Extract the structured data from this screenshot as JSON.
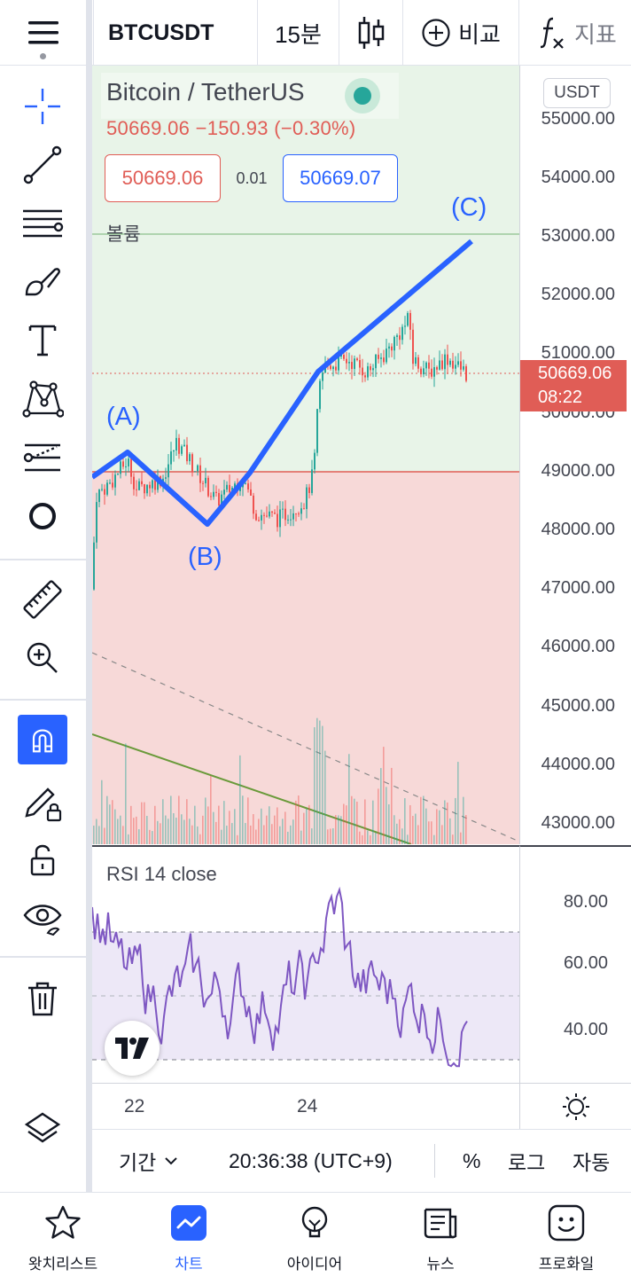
{
  "header": {
    "symbol": "BTCUSDT",
    "interval": "15분",
    "compare_label": "비교",
    "indicators_label": "지표"
  },
  "legend": {
    "title": "Bitcoin / TetherUS",
    "change": "50669.06  −150.93 (−0.30%)",
    "bid": "50669.06",
    "spread": "0.01",
    "ask": "50669.07",
    "volume_label": "볼륨"
  },
  "price_axis": {
    "currency": "USDT",
    "labels": [
      "55000.00",
      "54000.00",
      "53000.00",
      "52000.00",
      "51000.00",
      "50000.00",
      "49000.00",
      "48000.00",
      "47000.00",
      "46000.00",
      "45000.00",
      "44000.00",
      "43000.00"
    ],
    "current_price": "50669.06",
    "countdown": "08:22",
    "current_color": "#e05d56"
  },
  "annotations": {
    "a": "(A)",
    "b": "(B)",
    "c": "(C)",
    "line_color": "#2962ff"
  },
  "rsi": {
    "label": "RSI 14 close",
    "axis_labels": [
      "80.00",
      "60.00",
      "40.00"
    ],
    "line_color": "#7e57c2"
  },
  "time_axis": {
    "labels": [
      "22",
      "24"
    ]
  },
  "range_bar": {
    "period": "기간",
    "time": "20:36:38 (UTC+9)",
    "percent": "%",
    "log": "로그",
    "auto": "자동"
  },
  "nav": {
    "watchlist": "왓치리스트",
    "chart": "차트",
    "ideas": "아이디어",
    "news": "뉴스",
    "profile": "프로화일"
  },
  "colors": {
    "accent": "#2962ff",
    "up_zone": "#e8f4e8",
    "down_zone": "#f7d9d8",
    "up": "#26a69a",
    "down": "#ef5350"
  }
}
